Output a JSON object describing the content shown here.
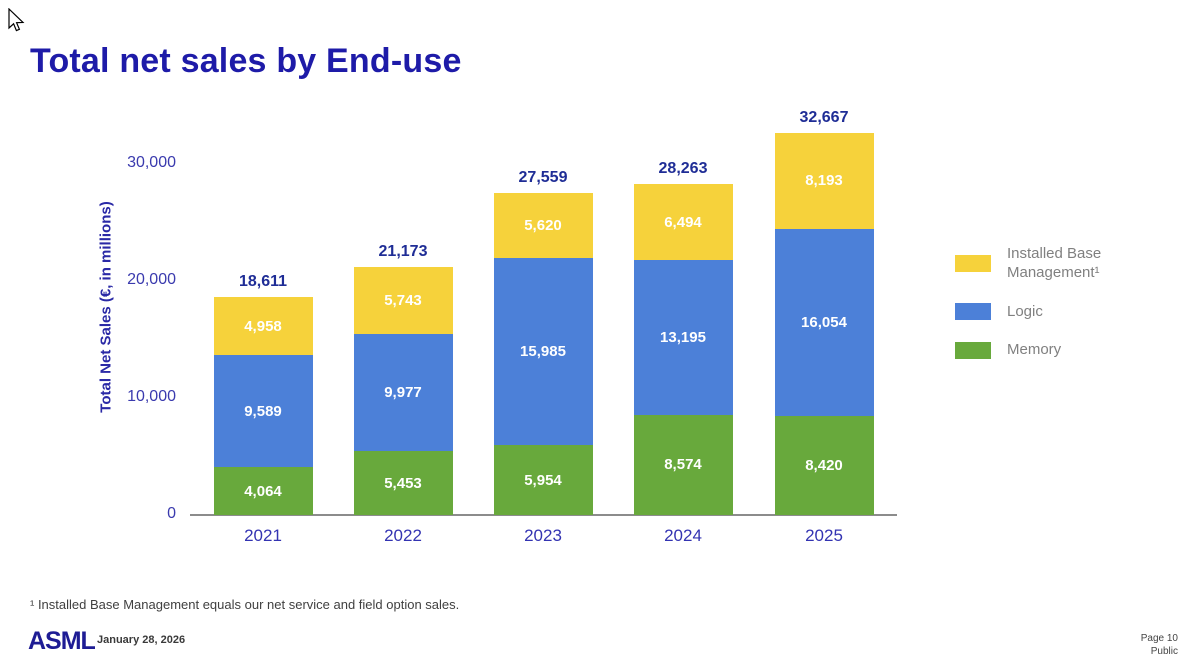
{
  "page": {
    "title": "Total net sales by End-use",
    "footnote": "¹ Installed Base Management equals our net service and field option sales.",
    "footer": {
      "logo": "ASML",
      "date": "January 28, 2026",
      "page_number": "Page 10",
      "classification": "Public"
    },
    "cursor_icon": "mouse-pointer"
  },
  "colors": {
    "title_navy": "#1e1ba8",
    "axis_text": "#3a3aae",
    "total_label": "#1f2d96",
    "axis_line": "#8c8c8c",
    "value_label": "#ffffff",
    "legend_text": "#808080",
    "bar_yellow": "#f6d23b",
    "bar_blue": "#4c80d8",
    "bar_green": "#68a93c"
  },
  "chart_data": {
    "type": "bar",
    "stacked": true,
    "title": "",
    "xlabel": "",
    "ylabel": "Total Net Sales (€, in millions)",
    "ylim": [
      0,
      30000
    ],
    "yticks": [
      0,
      10000,
      20000,
      30000
    ],
    "ytick_labels": [
      "0",
      "10,000",
      "20,000",
      "30,000"
    ],
    "grid": false,
    "legend_position": "right",
    "categories": [
      "2021",
      "2022",
      "2023",
      "2024",
      "2025"
    ],
    "series": [
      {
        "name": "Memory",
        "color": "#68a93c",
        "values": [
          4064,
          5453,
          5954,
          8574,
          8420
        ],
        "labels": [
          "4,064",
          "5,453",
          "5,954",
          "8,574",
          "8,420"
        ]
      },
      {
        "name": "Logic",
        "color": "#4c80d8",
        "values": [
          9589,
          9977,
          15985,
          13195,
          16054
        ],
        "labels": [
          "9,589",
          "9,977",
          "15,985",
          "13,195",
          "16,054"
        ]
      },
      {
        "name": "Installed Base Management¹",
        "color": "#f6d23b",
        "values": [
          4958,
          5743,
          5620,
          6494,
          8193
        ],
        "labels": [
          "4,958",
          "5,743",
          "5,620",
          "6,494",
          "8,193"
        ]
      }
    ],
    "totals": [
      18611,
      21173,
      27559,
      28263,
      32667
    ],
    "total_labels": [
      "18,611",
      "21,173",
      "27,559",
      "28,263",
      "32,667"
    ],
    "legend": [
      {
        "label": "Installed Base Management¹",
        "color": "#f6d23b"
      },
      {
        "label": "Logic",
        "color": "#4c80d8"
      },
      {
        "label": "Memory",
        "color": "#68a93c"
      }
    ]
  }
}
